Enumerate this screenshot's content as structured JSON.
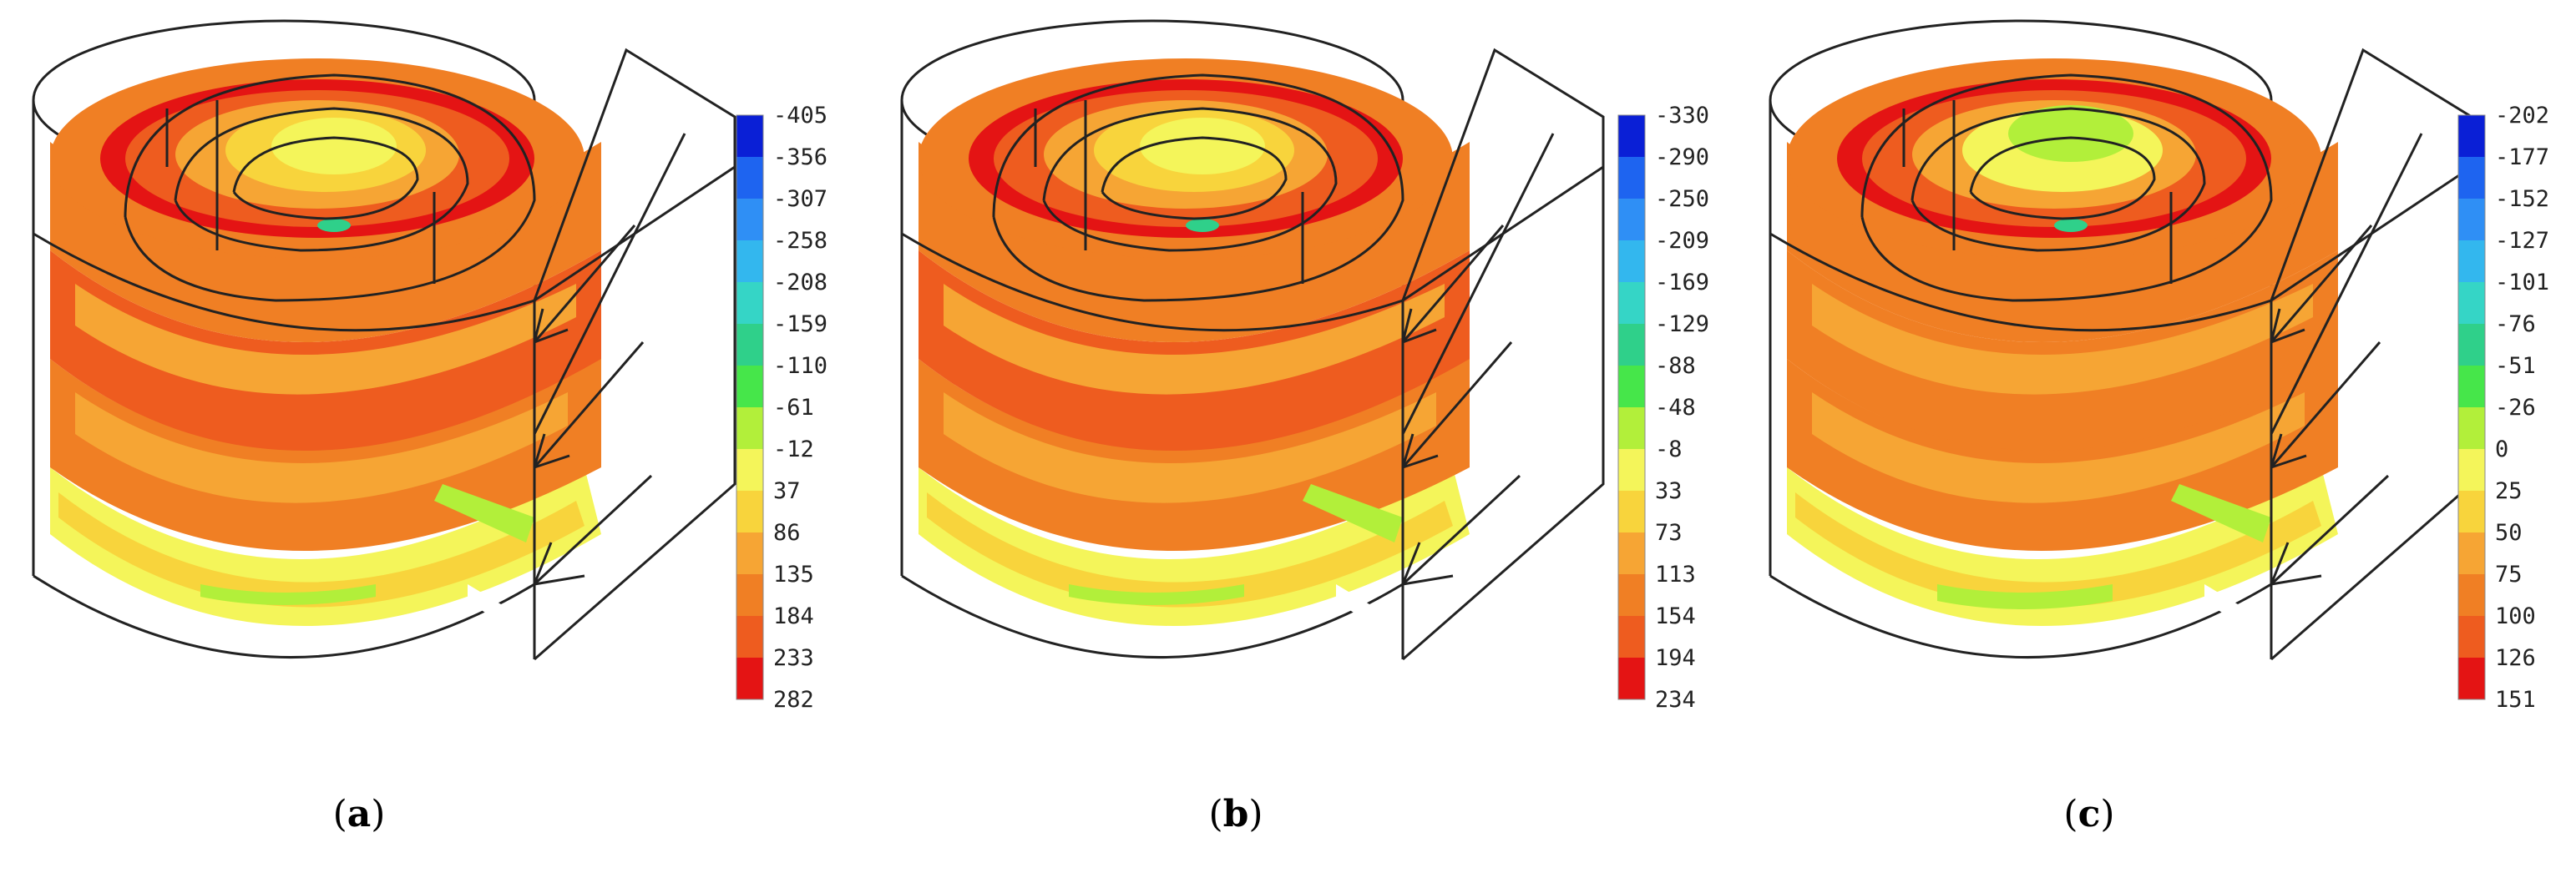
{
  "scale_colors": [
    "#0a1fd6",
    "#1e64f0",
    "#2f8ff5",
    "#33b7ee",
    "#35d5c6",
    "#2fd08a",
    "#46e64a",
    "#b2ef3a",
    "#f4f55a",
    "#f8d43c",
    "#f6a534",
    "#f07f24",
    "#ee5c1f",
    "#e41414"
  ],
  "panels": [
    {
      "caption": {
        "open": "(",
        "letter": "a",
        "close": ")"
      },
      "legend": [
        "-405",
        "-356",
        "-307",
        "-258",
        "-208",
        "-159",
        "-110",
        "-61",
        "-12",
        "37",
        "86",
        "135",
        "184",
        "233",
        "282"
      ]
    },
    {
      "caption": {
        "open": "(",
        "letter": "b",
        "close": ")"
      },
      "legend": [
        "-330",
        "-290",
        "-250",
        "-209",
        "-169",
        "-129",
        "-88",
        "-48",
        "-8",
        "33",
        "73",
        "113",
        "154",
        "194",
        "234"
      ]
    },
    {
      "caption": {
        "open": "(",
        "letter": "c",
        "close": ")"
      },
      "legend": [
        "-202",
        "-177",
        "-152",
        "-127",
        "-101",
        "-76",
        "-51",
        "-26",
        "0",
        "25",
        "50",
        "75",
        "100",
        "126",
        "151"
      ]
    }
  ]
}
